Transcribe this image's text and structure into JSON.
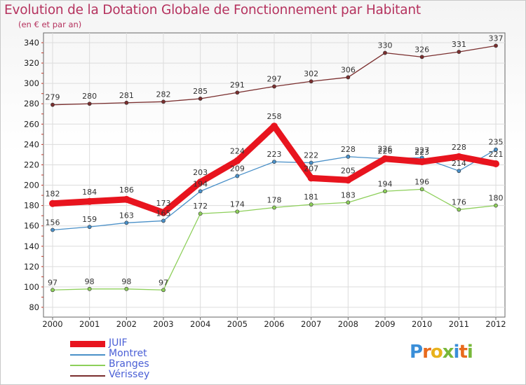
{
  "title": "Evolution de la Dotation Globale de Fonctionnement par Habitant",
  "subtitle": "(en € et par an)",
  "logo": "Proxiti",
  "chart_data": {
    "type": "line",
    "categories": [
      "2000",
      "2001",
      "2002",
      "2003",
      "2004",
      "2005",
      "2006",
      "2007",
      "2008",
      "2009",
      "2010",
      "2011",
      "2012"
    ],
    "ylim": [
      80,
      340
    ],
    "yticks": [
      80,
      100,
      120,
      140,
      160,
      180,
      200,
      220,
      240,
      260,
      280,
      300,
      320,
      340
    ],
    "series": [
      {
        "name": "Vérissey",
        "color": "#7a2e2e",
        "values": [
          279,
          280,
          281,
          282,
          285,
          291,
          297,
          302,
          306,
          330,
          326,
          331,
          337
        ]
      },
      {
        "name": "Branges",
        "color": "#8dcf5a",
        "values": [
          97,
          98,
          98,
          97,
          172,
          174,
          178,
          181,
          183,
          194,
          196,
          176,
          180
        ]
      },
      {
        "name": "Montret",
        "color": "#4a90c8",
        "values": [
          156,
          159,
          163,
          165,
          194,
          209,
          223,
          222,
          228,
          226,
          227,
          214,
          235
        ]
      },
      {
        "name": "JUIF",
        "color": "#e8141e",
        "values": [
          182,
          184,
          186,
          173,
          203,
          224,
          258,
          207,
          205,
          226,
          223,
          228,
          221
        ]
      }
    ]
  },
  "legend": [
    "JUIF",
    "Montret",
    "Branges",
    "Vérissey"
  ]
}
